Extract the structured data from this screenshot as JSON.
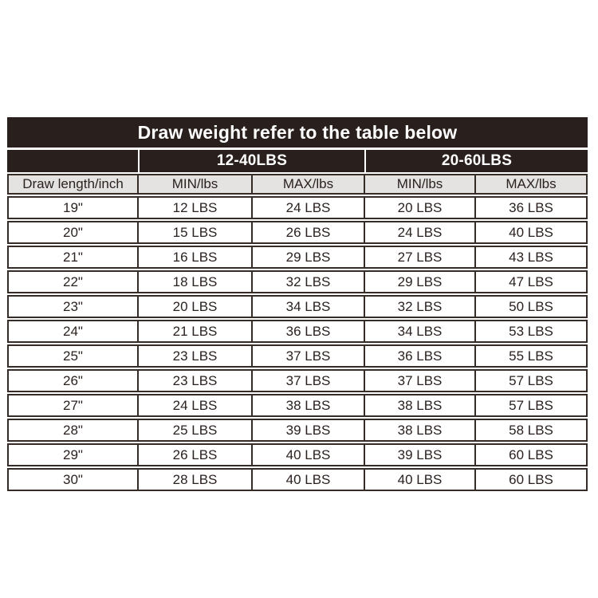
{
  "title_bar": {
    "label": "Draw weight refer to the table below"
  },
  "group_headers": {
    "spacer": "",
    "group1": "12-40LBS",
    "group2": "20-60LBS"
  },
  "columns": [
    "Draw length/inch",
    "MIN/lbs",
    "MAX/lbs",
    "MIN/lbs",
    "MAX/lbs"
  ],
  "rows": [
    {
      "draw_length": "19\"",
      "values": [
        "12 LBS",
        "24 LBS",
        "20 LBS",
        "36 LBS"
      ]
    },
    {
      "draw_length": "20\"",
      "values": [
        "15 LBS",
        "26 LBS",
        "24 LBS",
        "40 LBS"
      ]
    },
    {
      "draw_length": "21\"",
      "values": [
        "16 LBS",
        "29 LBS",
        "27 LBS",
        "43 LBS"
      ]
    },
    {
      "draw_length": "22\"",
      "values": [
        "18 LBS",
        "32 LBS",
        "29 LBS",
        "47 LBS"
      ]
    },
    {
      "draw_length": "23\"",
      "values": [
        "20 LBS",
        "34 LBS",
        "32 LBS",
        "50 LBS"
      ]
    },
    {
      "draw_length": "24\"",
      "values": [
        "21 LBS",
        "36 LBS",
        "34 LBS",
        "53 LBS"
      ]
    },
    {
      "draw_length": "25\"",
      "values": [
        "23 LBS",
        "37 LBS",
        "36 LBS",
        "55 LBS"
      ]
    },
    {
      "draw_length": "26\"",
      "values": [
        "23 LBS",
        "37 LBS",
        "37 LBS",
        "57 LBS"
      ]
    },
    {
      "draw_length": "27\"",
      "values": [
        "24 LBS",
        "38 LBS",
        "38 LBS",
        "57 LBS"
      ]
    },
    {
      "draw_length": "28\"",
      "values": [
        "25 LBS",
        "39 LBS",
        "38 LBS",
        "58 LBS"
      ]
    },
    {
      "draw_length": "29\"",
      "values": [
        "26 LBS",
        "40 LBS",
        "39 LBS",
        "60 LBS"
      ]
    },
    {
      "draw_length": "30\"",
      "values": [
        "28 LBS",
        "40 LBS",
        "40 LBS",
        "60 LBS"
      ]
    }
  ],
  "colors": {
    "header_bg": "#29201d",
    "header_text": "#ffffff",
    "subheader_bg": "#e4e3e1",
    "border": "#352c28",
    "cell_text": "#2b2220",
    "page_bg": "#ffffff"
  }
}
